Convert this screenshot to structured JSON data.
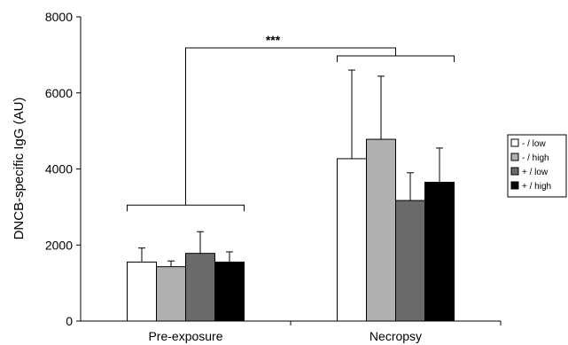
{
  "chart_data": {
    "type": "bar",
    "title": "",
    "xlabel": "",
    "ylabel": "DNCB-specific IgG (AU)",
    "ylim": [
      0,
      8000
    ],
    "yticks": [
      0,
      2000,
      4000,
      6000,
      8000
    ],
    "categories": [
      "Pre-exposure",
      "Necropsy"
    ],
    "series": [
      {
        "name": "- / low",
        "color": "#ffffff",
        "values": [
          1550,
          4270
        ],
        "errors": [
          370,
          2330
        ]
      },
      {
        "name": "- / high",
        "color": "#b0b0b0",
        "values": [
          1430,
          4780
        ],
        "errors": [
          150,
          1660
        ]
      },
      {
        "name": "+ / low",
        "color": "#6a6a6a",
        "values": [
          1780,
          3170
        ],
        "errors": [
          570,
          730
        ]
      },
      {
        "name": "+ / high",
        "color": "#000000",
        "values": [
          1550,
          3650
        ],
        "errors": [
          270,
          900
        ]
      }
    ],
    "legend_position": "right",
    "grid": false,
    "annotations": [
      {
        "text": "***",
        "between": [
          "Pre-exposure",
          "Necropsy"
        ]
      }
    ]
  }
}
